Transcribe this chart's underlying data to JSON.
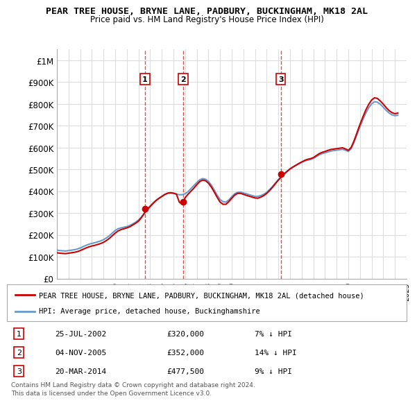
{
  "title": "PEAR TREE HOUSE, BRYNE LANE, PADBURY, BUCKINGHAM, MK18 2AL",
  "subtitle": "Price paid vs. HM Land Registry's House Price Index (HPI)",
  "legend_line1": "PEAR TREE HOUSE, BRYNE LANE, PADBURY, BUCKINGHAM, MK18 2AL (detached house)",
  "legend_line2": "HPI: Average price, detached house, Buckinghamshire",
  "footer1": "Contains HM Land Registry data © Crown copyright and database right 2024.",
  "footer2": "This data is licensed under the Open Government Licence v3.0.",
  "sale_color": "#cc0000",
  "hpi_color": "#6699cc",
  "background_color": "#ffffff",
  "grid_color": "#dddddd",
  "ylim": [
    0,
    1050000
  ],
  "yticks": [
    0,
    100000,
    200000,
    300000,
    400000,
    500000,
    600000,
    700000,
    800000,
    900000,
    1000000
  ],
  "ytick_labels": [
    "£0",
    "£100K",
    "£200K",
    "£300K",
    "£400K",
    "£500K",
    "£600K",
    "£700K",
    "£800K",
    "£900K",
    "£1M"
  ],
  "sales": [
    {
      "date": 2002.56,
      "price": 320000,
      "label": "1"
    },
    {
      "date": 2005.84,
      "price": 352000,
      "label": "2"
    },
    {
      "date": 2014.22,
      "price": 477500,
      "label": "3"
    }
  ],
  "sale_annotations": [
    {
      "label": "1",
      "date": "25-JUL-2002",
      "price": "£320,000",
      "relation": "7% ↓ HPI"
    },
    {
      "label": "2",
      "date": "04-NOV-2005",
      "price": "£352,000",
      "relation": "14% ↓ HPI"
    },
    {
      "label": "3",
      "date": "20-MAR-2014",
      "price": "£477,500",
      "relation": "9% ↓ HPI"
    }
  ],
  "hpi_data": {
    "years": [
      1995.0,
      1995.25,
      1995.5,
      1995.75,
      1996.0,
      1996.25,
      1996.5,
      1996.75,
      1997.0,
      1997.25,
      1997.5,
      1997.75,
      1998.0,
      1998.25,
      1998.5,
      1998.75,
      1999.0,
      1999.25,
      1999.5,
      1999.75,
      2000.0,
      2000.25,
      2000.5,
      2000.75,
      2001.0,
      2001.25,
      2001.5,
      2001.75,
      2002.0,
      2002.25,
      2002.5,
      2002.75,
      2003.0,
      2003.25,
      2003.5,
      2003.75,
      2004.0,
      2004.25,
      2004.5,
      2004.75,
      2005.0,
      2005.25,
      2005.5,
      2005.75,
      2006.0,
      2006.25,
      2006.5,
      2006.75,
      2007.0,
      2007.25,
      2007.5,
      2007.75,
      2008.0,
      2008.25,
      2008.5,
      2008.75,
      2009.0,
      2009.25,
      2009.5,
      2009.75,
      2010.0,
      2010.25,
      2010.5,
      2010.75,
      2011.0,
      2011.25,
      2011.5,
      2011.75,
      2012.0,
      2012.25,
      2012.5,
      2012.75,
      2013.0,
      2013.25,
      2013.5,
      2013.75,
      2014.0,
      2014.25,
      2014.5,
      2014.75,
      2015.0,
      2015.25,
      2015.5,
      2015.75,
      2016.0,
      2016.25,
      2016.5,
      2016.75,
      2017.0,
      2017.25,
      2017.5,
      2017.75,
      2018.0,
      2018.25,
      2018.5,
      2018.75,
      2019.0,
      2019.25,
      2019.5,
      2019.75,
      2020.0,
      2020.25,
      2020.5,
      2020.75,
      2021.0,
      2021.25,
      2021.5,
      2021.75,
      2022.0,
      2022.25,
      2022.5,
      2022.75,
      2023.0,
      2023.25,
      2023.5,
      2023.75,
      2024.0,
      2024.25
    ],
    "values": [
      130000,
      128000,
      127000,
      126000,
      128000,
      130000,
      132000,
      135000,
      140000,
      146000,
      152000,
      157000,
      161000,
      164000,
      168000,
      172000,
      178000,
      186000,
      196000,
      208000,
      220000,
      228000,
      232000,
      235000,
      238000,
      243000,
      250000,
      258000,
      268000,
      282000,
      300000,
      318000,
      332000,
      346000,
      358000,
      368000,
      376000,
      384000,
      390000,
      392000,
      390000,
      386000,
      384000,
      384000,
      388000,
      398000,
      412000,
      426000,
      440000,
      452000,
      458000,
      455000,
      445000,
      428000,
      405000,
      382000,
      362000,
      352000,
      350000,
      360000,
      375000,
      388000,
      395000,
      396000,
      392000,
      388000,
      384000,
      380000,
      376000,
      376000,
      380000,
      386000,
      395000,
      408000,
      422000,
      438000,
      453000,
      467000,
      480000,
      492000,
      502000,
      510000,
      518000,
      525000,
      532000,
      538000,
      542000,
      545000,
      550000,
      558000,
      566000,
      572000,
      576000,
      580000,
      584000,
      586000,
      588000,
      590000,
      592000,
      588000,
      582000,
      595000,
      625000,
      660000,
      695000,
      728000,
      758000,
      782000,
      800000,
      810000,
      808000,
      798000,
      785000,
      770000,
      758000,
      750000,
      746000,
      748000
    ]
  },
  "property_data": {
    "years": [
      1995.0,
      1995.25,
      1995.5,
      1995.75,
      1996.0,
      1996.25,
      1996.5,
      1996.75,
      1997.0,
      1997.25,
      1997.5,
      1997.75,
      1998.0,
      1998.25,
      1998.5,
      1998.75,
      1999.0,
      1999.25,
      1999.5,
      1999.75,
      2000.0,
      2000.25,
      2000.5,
      2000.75,
      2001.0,
      2001.25,
      2001.5,
      2001.75,
      2002.0,
      2002.25,
      2002.5,
      2002.75,
      2003.0,
      2003.25,
      2003.5,
      2003.75,
      2004.0,
      2004.25,
      2004.5,
      2004.75,
      2005.0,
      2005.25,
      2005.5,
      2005.75,
      2006.0,
      2006.25,
      2006.5,
      2006.75,
      2007.0,
      2007.25,
      2007.5,
      2007.75,
      2008.0,
      2008.25,
      2008.5,
      2008.75,
      2009.0,
      2009.25,
      2009.5,
      2009.75,
      2010.0,
      2010.25,
      2010.5,
      2010.75,
      2011.0,
      2011.25,
      2011.5,
      2011.75,
      2012.0,
      2012.25,
      2012.5,
      2012.75,
      2013.0,
      2013.25,
      2013.5,
      2013.75,
      2014.0,
      2014.25,
      2014.5,
      2014.75,
      2015.0,
      2015.25,
      2015.5,
      2015.75,
      2016.0,
      2016.25,
      2016.5,
      2016.75,
      2017.0,
      2017.25,
      2017.5,
      2017.75,
      2018.0,
      2018.25,
      2018.5,
      2018.75,
      2019.0,
      2019.25,
      2019.5,
      2019.75,
      2020.0,
      2020.25,
      2020.5,
      2020.75,
      2021.0,
      2021.25,
      2021.5,
      2021.75,
      2022.0,
      2022.25,
      2022.5,
      2022.75,
      2023.0,
      2023.25,
      2023.5,
      2023.75,
      2024.0,
      2024.25
    ],
    "values": [
      118000,
      116000,
      115000,
      114000,
      116000,
      118000,
      120000,
      123000,
      128000,
      134000,
      140000,
      145000,
      149000,
      152000,
      156000,
      160000,
      166000,
      174000,
      184000,
      196000,
      208000,
      218000,
      224000,
      228000,
      232000,
      237000,
      245000,
      253000,
      263000,
      279000,
      298000,
      316000,
      330000,
      344000,
      357000,
      367000,
      376000,
      385000,
      391000,
      393000,
      391000,
      387000,
      350000,
      340000,
      370000,
      386000,
      400000,
      414000,
      430000,
      444000,
      451000,
      448000,
      437000,
      419000,
      396000,
      372000,
      350000,
      340000,
      340000,
      352000,
      368000,
      382000,
      390000,
      390000,
      386000,
      381000,
      377000,
      373000,
      369000,
      368000,
      373000,
      380000,
      390000,
      403000,
      418000,
      435000,
      451000,
      465000,
      479000,
      491000,
      502000,
      511000,
      519000,
      527000,
      534000,
      541000,
      546000,
      549000,
      554000,
      563000,
      572000,
      578000,
      582000,
      587000,
      591000,
      593000,
      595000,
      597000,
      599000,
      594000,
      587000,
      601000,
      632000,
      669000,
      706000,
      740000,
      772000,
      798000,
      818000,
      828000,
      825000,
      813000,
      799000,
      783000,
      769000,
      760000,
      755000,
      758000
    ]
  },
  "xmin": 1995.0,
  "xmax": 2025.0,
  "xticks": [
    1995,
    1996,
    1997,
    1998,
    1999,
    2000,
    2001,
    2002,
    2003,
    2004,
    2005,
    2006,
    2007,
    2008,
    2009,
    2010,
    2011,
    2012,
    2013,
    2014,
    2015,
    2016,
    2017,
    2018,
    2019,
    2020,
    2021,
    2022,
    2023,
    2024,
    2025
  ]
}
